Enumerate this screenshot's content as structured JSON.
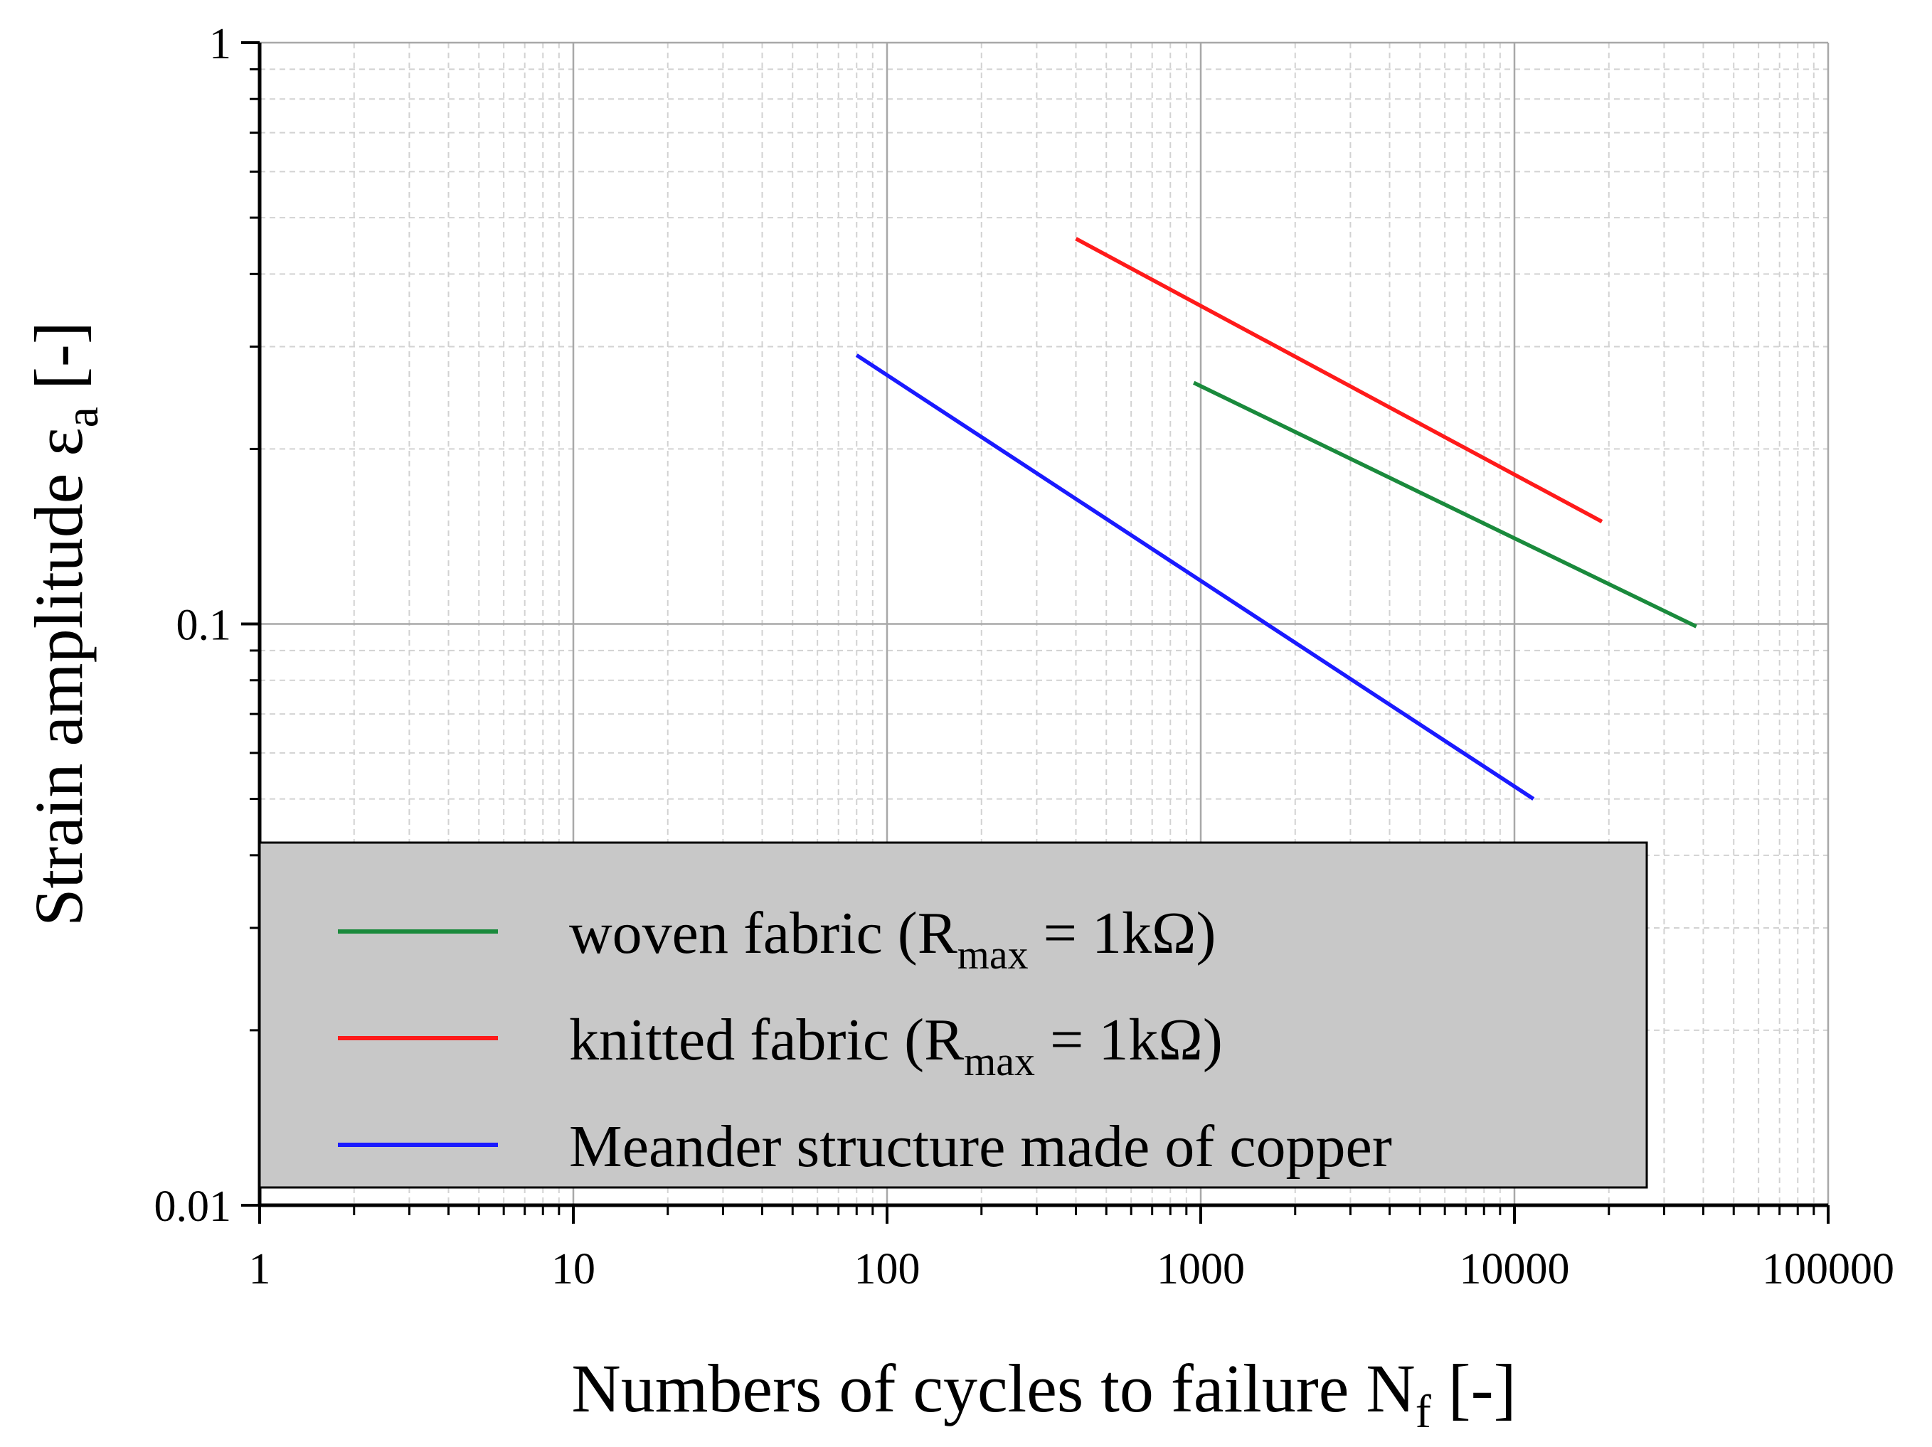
{
  "chart_data": {
    "type": "line",
    "xscale": "log",
    "yscale": "log",
    "xlim": [
      1,
      100000
    ],
    "ylim": [
      0.01,
      1
    ],
    "grid": true,
    "legend_position": "bottom-left",
    "xlabel": {
      "main": "Numbers of cycles to failure N",
      "sub": "f",
      "tail": " [-]"
    },
    "ylabel": {
      "main": "Strain amplitude ε",
      "sub": "a",
      "tail": " [-]"
    },
    "x_ticks": [
      {
        "value": 1,
        "label": "1"
      },
      {
        "value": 10,
        "label": "10"
      },
      {
        "value": 100,
        "label": "100"
      },
      {
        "value": 1000,
        "label": "1000"
      },
      {
        "value": 10000,
        "label": "10000"
      },
      {
        "value": 100000,
        "label": "100000"
      }
    ],
    "y_ticks": [
      {
        "value": 0.01,
        "label": "0.01"
      },
      {
        "value": 0.1,
        "label": "0.1"
      },
      {
        "value": 1,
        "label": "1"
      }
    ],
    "series": [
      {
        "key": "woven",
        "name": {
          "main": "woven fabric (R",
          "sub": "max",
          "tail": " = 1kΩ)"
        },
        "color": "#1a8a3c",
        "x": [
          950,
          38000
        ],
        "y": [
          0.26,
          0.099
        ]
      },
      {
        "key": "knitted",
        "name": {
          "main": "knitted fabric (R",
          "sub": "max",
          "tail": " = 1kΩ)"
        },
        "color": "#ff1a1a",
        "x": [
          400,
          19000
        ],
        "y": [
          0.46,
          0.15
        ]
      },
      {
        "key": "meander",
        "name": {
          "main": "Meander structure made of copper",
          "sub": "",
          "tail": ""
        },
        "color": "#1a1aff",
        "x": [
          80,
          11500
        ],
        "y": [
          0.29,
          0.05
        ]
      }
    ]
  }
}
